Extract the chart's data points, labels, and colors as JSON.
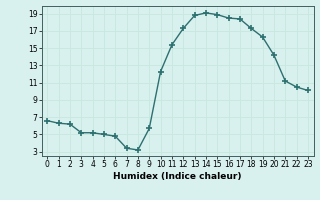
{
  "x": [
    0,
    1,
    2,
    3,
    4,
    5,
    6,
    7,
    8,
    9,
    10,
    11,
    12,
    13,
    14,
    15,
    16,
    17,
    18,
    19,
    20,
    21,
    22,
    23
  ],
  "y": [
    6.6,
    6.3,
    6.2,
    5.2,
    5.2,
    5.0,
    4.8,
    3.4,
    3.2,
    5.7,
    12.3,
    15.4,
    17.3,
    18.8,
    19.1,
    18.9,
    18.5,
    18.4,
    17.3,
    16.3,
    14.2,
    11.2,
    10.5,
    10.1
  ],
  "line_color": "#2d7070",
  "marker": "+",
  "marker_size": 4,
  "marker_linewidth": 1.2,
  "line_width": 1.0,
  "xlabel": "Humidex (Indice chaleur)",
  "xlabel_fontsize": 6.5,
  "xlim": [
    -0.5,
    23.5
  ],
  "ylim": [
    2.5,
    19.9
  ],
  "xticks": [
    0,
    1,
    2,
    3,
    4,
    5,
    6,
    7,
    8,
    9,
    10,
    11,
    12,
    13,
    14,
    15,
    16,
    17,
    18,
    19,
    20,
    21,
    22,
    23
  ],
  "yticks": [
    3,
    5,
    7,
    9,
    11,
    13,
    15,
    17,
    19
  ],
  "grid_color": "#c8e8e0",
  "bg_color": "#d8f0ee",
  "tick_fontsize": 5.5,
  "line_style": "-"
}
